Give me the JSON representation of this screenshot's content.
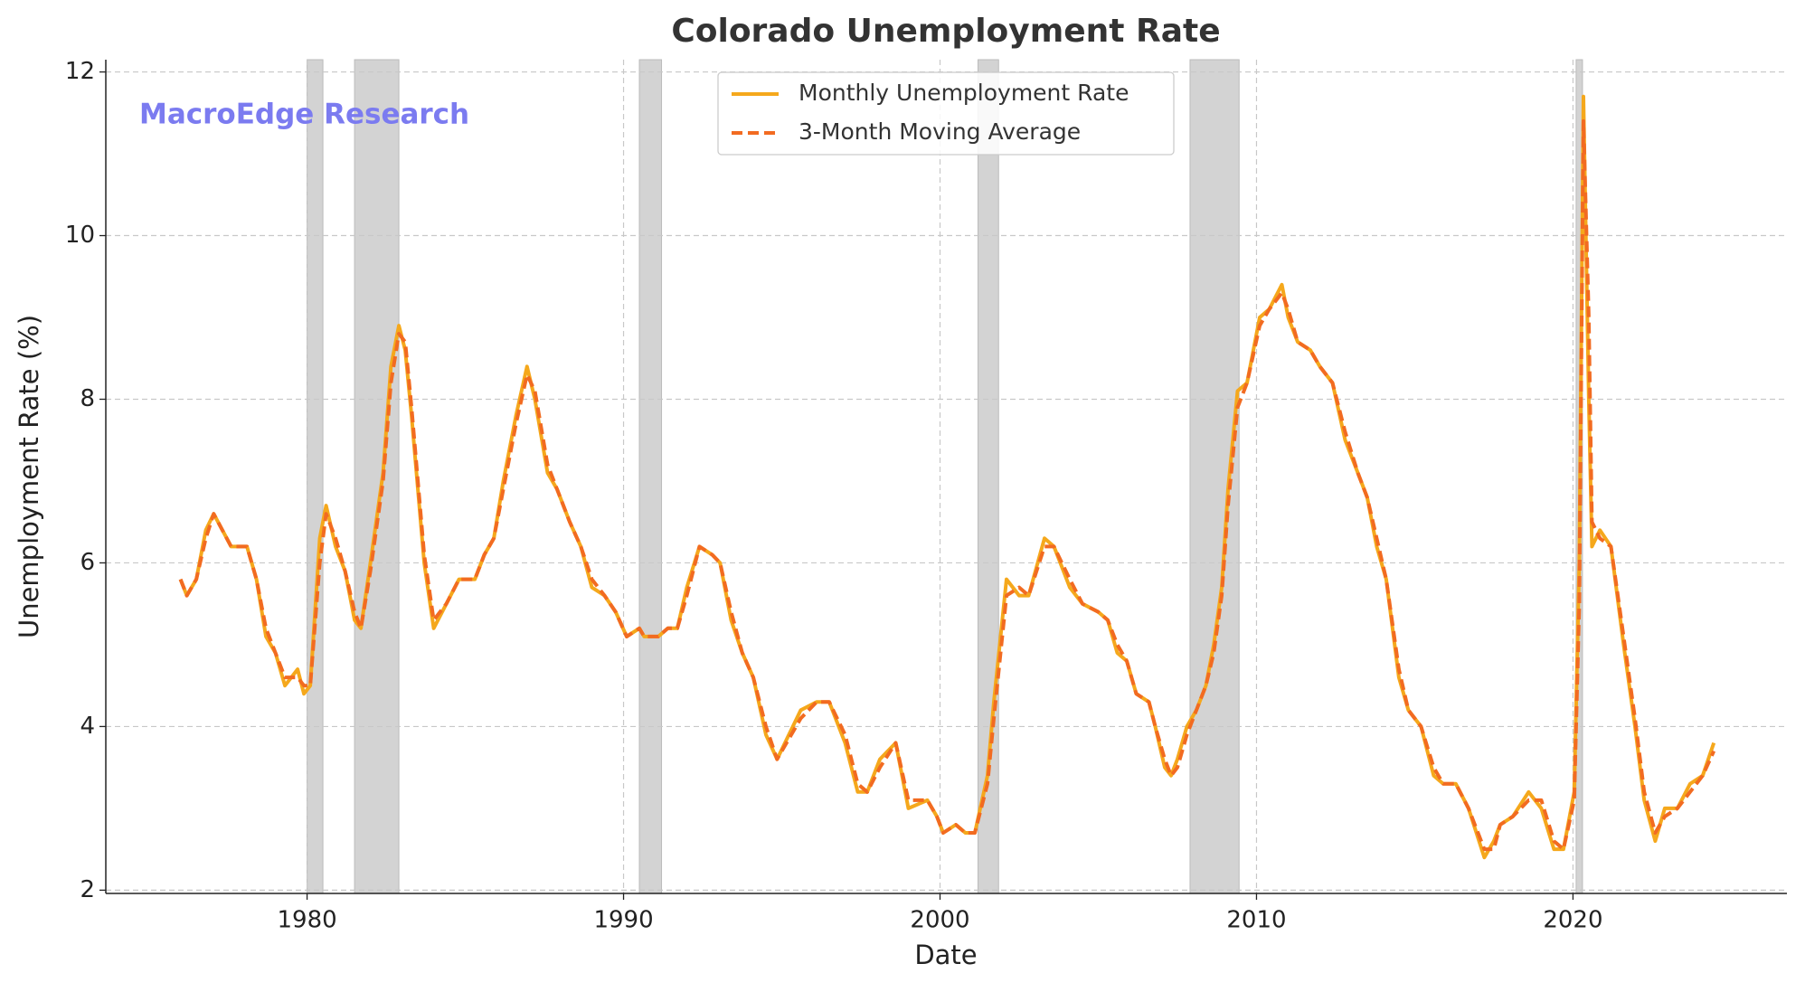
{
  "chart_data": {
    "type": "line",
    "title": "Colorado Unemployment Rate",
    "xlabel": "Date",
    "ylabel": "Unemployment Rate (%)",
    "annotation": "MacroEdge Research",
    "xlim": [
      1973.64,
      2026.76
    ],
    "ylim": [
      1.96,
      12.15
    ],
    "xticks": [
      1980,
      1990,
      2000,
      2010,
      2020
    ],
    "yticks": [
      2,
      4,
      6,
      8,
      10,
      12
    ],
    "grid": true,
    "legend": "upper center",
    "shaded_periods": [
      [
        1980.0,
        1980.5
      ],
      [
        1981.5,
        1982.9
      ],
      [
        1990.5,
        1991.2
      ],
      [
        2001.2,
        2001.85
      ],
      [
        2007.9,
        2009.45
      ],
      [
        2020.1,
        2020.3
      ]
    ],
    "shade_color": "#d3d3d3",
    "x": [
      1976.0,
      1976.2,
      1976.5,
      1976.8,
      1977.05,
      1977.6,
      1978.1,
      1978.4,
      1978.7,
      1979.0,
      1979.3,
      1979.7,
      1979.9,
      1980.1,
      1980.4,
      1980.6,
      1980.9,
      1981.2,
      1981.5,
      1981.7,
      1982.0,
      1982.4,
      1982.65,
      1982.9,
      1983.1,
      1983.3,
      1983.7,
      1984.0,
      1984.4,
      1984.8,
      1985.3,
      1985.6,
      1985.9,
      1986.2,
      1986.6,
      1986.95,
      1987.2,
      1987.6,
      1987.9,
      1988.3,
      1988.65,
      1989.0,
      1989.4,
      1989.75,
      1990.1,
      1990.5,
      1990.65,
      1991.1,
      1991.4,
      1991.7,
      1992.0,
      1992.4,
      1992.8,
      1993.05,
      1993.4,
      1993.75,
      1994.1,
      1994.5,
      1994.85,
      1995.6,
      1996.1,
      1996.5,
      1997.0,
      1997.4,
      1997.7,
      1998.1,
      1998.6,
      1999.0,
      1999.6,
      1999.9,
      2000.1,
      2000.5,
      2000.8,
      2001.1,
      2001.5,
      2001.7,
      2002.1,
      2002.5,
      2002.8,
      2003.3,
      2003.6,
      2004.1,
      2004.5,
      2005.0,
      2005.3,
      2005.6,
      2005.9,
      2006.2,
      2006.6,
      2006.8,
      2007.1,
      2007.3,
      2007.5,
      2007.8,
      2008.1,
      2008.4,
      2008.65,
      2008.9,
      2009.1,
      2009.4,
      2009.7,
      2010.1,
      2010.4,
      2010.8,
      2011.0,
      2011.3,
      2011.7,
      2012.0,
      2012.4,
      2012.8,
      2013.2,
      2013.5,
      2013.8,
      2014.1,
      2014.5,
      2014.8,
      2015.2,
      2015.6,
      2015.9,
      2016.3,
      2016.7,
      2017.2,
      2017.5,
      2017.7,
      2018.1,
      2018.6,
      2019.0,
      2019.4,
      2019.7,
      2020.04,
      2020.2,
      2020.33,
      2020.5,
      2020.6,
      2020.85,
      2021.2,
      2021.6,
      2021.96,
      2022.25,
      2022.6,
      2022.9,
      2023.3,
      2023.7,
      2024.1,
      2024.45
    ],
    "series": [
      {
        "name": "Monthly Unemployment Rate",
        "color": "#f5a81c",
        "dash": false,
        "values": [
          5.8,
          5.6,
          5.8,
          6.4,
          6.6,
          6.2,
          6.2,
          5.8,
          5.1,
          4.9,
          4.5,
          4.7,
          4.4,
          4.5,
          6.3,
          6.7,
          6.2,
          5.9,
          5.3,
          5.2,
          6.0,
          7.1,
          8.4,
          8.9,
          8.6,
          7.8,
          6.0,
          5.2,
          5.5,
          5.8,
          5.8,
          6.1,
          6.3,
          7.0,
          7.8,
          8.4,
          8.0,
          7.1,
          6.9,
          6.5,
          6.2,
          5.7,
          5.6,
          5.4,
          5.1,
          5.2,
          5.1,
          5.1,
          5.2,
          5.2,
          5.7,
          6.2,
          6.1,
          6.0,
          5.3,
          4.9,
          4.6,
          3.9,
          3.6,
          4.2,
          4.3,
          4.3,
          3.8,
          3.2,
          3.2,
          3.6,
          3.8,
          3.0,
          3.1,
          2.9,
          2.7,
          2.8,
          2.7,
          2.7,
          3.4,
          4.3,
          5.8,
          5.6,
          5.6,
          6.3,
          6.2,
          5.7,
          5.5,
          5.4,
          5.3,
          4.9,
          4.8,
          4.4,
          4.3,
          4.0,
          3.5,
          3.4,
          3.6,
          4.0,
          4.2,
          4.5,
          5.0,
          5.7,
          6.9,
          8.1,
          8.2,
          9.0,
          9.1,
          9.4,
          9.0,
          8.7,
          8.6,
          8.4,
          8.2,
          7.5,
          7.1,
          6.8,
          6.2,
          5.8,
          4.6,
          4.2,
          4.0,
          3.4,
          3.3,
          3.3,
          3.0,
          2.4,
          2.6,
          2.8,
          2.9,
          3.2,
          3.0,
          2.5,
          2.5,
          3.2,
          6.0,
          11.7,
          8.0,
          6.2,
          6.4,
          6.2,
          5.0,
          4.0,
          3.1,
          2.6,
          3.0,
          3.0,
          3.3,
          3.4,
          3.8
        ]
      },
      {
        "name": "3-Month Moving Average",
        "color": "#f26b21",
        "dash": true,
        "values": [
          5.8,
          5.6,
          5.8,
          6.3,
          6.6,
          6.2,
          6.2,
          5.8,
          5.2,
          4.9,
          4.6,
          4.6,
          4.5,
          4.5,
          6.0,
          6.6,
          6.3,
          5.9,
          5.4,
          5.2,
          5.9,
          7.0,
          8.2,
          8.8,
          8.7,
          7.9,
          6.1,
          5.3,
          5.5,
          5.8,
          5.8,
          6.1,
          6.3,
          6.9,
          7.7,
          8.3,
          8.1,
          7.2,
          6.9,
          6.5,
          6.2,
          5.8,
          5.6,
          5.4,
          5.1,
          5.2,
          5.1,
          5.1,
          5.2,
          5.2,
          5.6,
          6.2,
          6.1,
          6.0,
          5.4,
          4.9,
          4.6,
          4.0,
          3.6,
          4.1,
          4.3,
          4.3,
          3.9,
          3.3,
          3.2,
          3.5,
          3.8,
          3.1,
          3.1,
          2.9,
          2.7,
          2.8,
          2.7,
          2.7,
          3.3,
          4.1,
          5.6,
          5.7,
          5.6,
          6.2,
          6.2,
          5.8,
          5.5,
          5.4,
          5.3,
          5.0,
          4.8,
          4.4,
          4.3,
          4.0,
          3.6,
          3.4,
          3.5,
          3.9,
          4.2,
          4.5,
          4.9,
          5.6,
          6.7,
          7.9,
          8.2,
          8.9,
          9.1,
          9.3,
          9.1,
          8.7,
          8.6,
          8.4,
          8.2,
          7.6,
          7.1,
          6.8,
          6.3,
          5.8,
          4.7,
          4.2,
          4.0,
          3.5,
          3.3,
          3.3,
          3.0,
          2.5,
          2.5,
          2.8,
          2.9,
          3.1,
          3.1,
          2.6,
          2.5,
          3.1,
          5.5,
          11.4,
          9.0,
          6.5,
          6.3,
          6.2,
          5.1,
          4.1,
          3.2,
          2.7,
          2.9,
          3.0,
          3.2,
          3.4,
          3.7
        ]
      }
    ]
  }
}
